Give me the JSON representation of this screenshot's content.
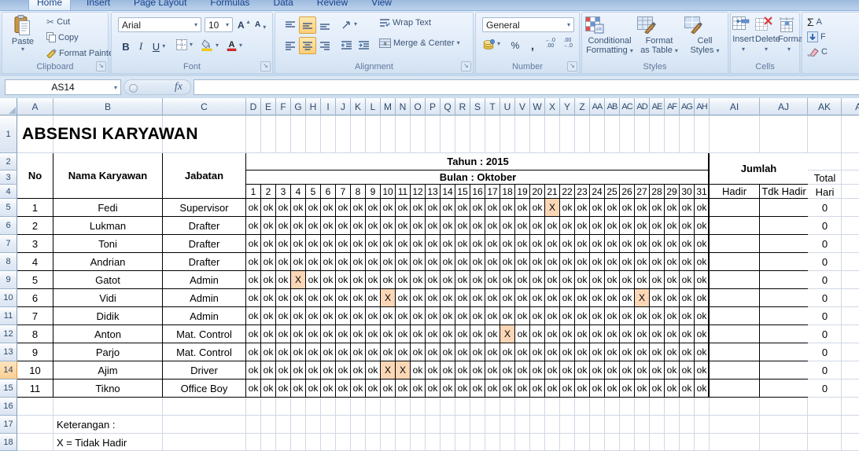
{
  "ribbon": {
    "tabs": [
      {
        "label": "Home",
        "active": true
      },
      {
        "label": "Insert",
        "active": false
      },
      {
        "label": "Page Layout",
        "active": false
      },
      {
        "label": "Formulas",
        "active": false
      },
      {
        "label": "Data",
        "active": false
      },
      {
        "label": "Review",
        "active": false
      },
      {
        "label": "View",
        "active": false
      }
    ],
    "clipboard": {
      "label": "Clipboard",
      "paste": "Paste",
      "cut": "Cut",
      "copy": "Copy",
      "format_painter": "Format Painter"
    },
    "font": {
      "label": "Font",
      "family": "Arial",
      "size": "10",
      "bold": "B",
      "italic": "I",
      "underline": "U"
    },
    "alignment": {
      "label": "Alignment",
      "wrap_text": "Wrap Text",
      "merge_center": "Merge & Center"
    },
    "number": {
      "label": "Number",
      "format": "General",
      "percent": "%",
      "comma": ","
    },
    "styles": {
      "label": "Styles",
      "conditional_1": "Conditional",
      "conditional_2": "Formatting",
      "format_table_1": "Format",
      "format_table_2": "as Table",
      "cell_styles_1": "Cell",
      "cell_styles_2": "Styles"
    },
    "cells": {
      "label": "Cells",
      "insert": "Insert",
      "delete": "Delete",
      "format": "Format"
    },
    "editing": {
      "autosum": "Σ",
      "autosum_partial": "A",
      "fill_partial": "F",
      "clear_partial": "C"
    }
  },
  "formula_bar": {
    "name_box": "AS14",
    "fx": "fx",
    "formula": ""
  },
  "grid": {
    "visible_columns": [
      "A",
      "B",
      "C",
      "D",
      "E",
      "F",
      "G",
      "H",
      "I",
      "J",
      "K",
      "L",
      "M",
      "N",
      "O",
      "P",
      "Q",
      "R",
      "S",
      "T",
      "U",
      "V",
      "W",
      "X",
      "Y",
      "Z",
      "AA",
      "AB",
      "AC",
      "AD",
      "AE",
      "AF",
      "AG",
      "AH",
      "AI",
      "AJ",
      "AK",
      "AL"
    ],
    "visible_rows": [
      "1",
      "2",
      "3",
      "4",
      "5",
      "6",
      "7",
      "8",
      "9",
      "10",
      "11",
      "12",
      "13",
      "14",
      "15",
      "16",
      "17",
      "18"
    ],
    "active_row": "14"
  },
  "sheet": {
    "title": "ABSENSI KARYAWAN",
    "header": {
      "no": "No",
      "nama": "Nama Karyawan",
      "jabatan": "Jabatan",
      "tahun": "Tahun : 2015",
      "bulan": "Bulan : Oktober",
      "jumlah": "Jumlah",
      "hadir": "Hadir",
      "tdk_hadir": "Tdk Hadir",
      "total_line1": "Total",
      "total_line2": "Hari"
    },
    "days": [
      1,
      2,
      3,
      4,
      5,
      6,
      7,
      8,
      9,
      10,
      11,
      12,
      13,
      14,
      15,
      16,
      17,
      18,
      19,
      20,
      21,
      22,
      23,
      24,
      25,
      26,
      27,
      28,
      29,
      30,
      31
    ],
    "marks": {
      "present": "ok",
      "absent": "X"
    },
    "employees": [
      {
        "no": "1",
        "name": "Fedi",
        "jabatan": "Supervisor",
        "absent_days": [
          21
        ],
        "hadir": "",
        "tdk_hadir": "",
        "total": "0"
      },
      {
        "no": "2",
        "name": "Lukman",
        "jabatan": "Drafter",
        "absent_days": [],
        "hadir": "",
        "tdk_hadir": "",
        "total": "0"
      },
      {
        "no": "3",
        "name": "Toni",
        "jabatan": "Drafter",
        "absent_days": [],
        "hadir": "",
        "tdk_hadir": "",
        "total": "0"
      },
      {
        "no": "4",
        "name": "Andrian",
        "jabatan": "Drafter",
        "absent_days": [],
        "hadir": "",
        "tdk_hadir": "",
        "total": "0"
      },
      {
        "no": "5",
        "name": "Gatot",
        "jabatan": "Admin",
        "absent_days": [
          4
        ],
        "hadir": "",
        "tdk_hadir": "",
        "total": "0"
      },
      {
        "no": "6",
        "name": "Vidi",
        "jabatan": "Admin",
        "absent_days": [
          10,
          27
        ],
        "hadir": "",
        "tdk_hadir": "",
        "total": "0"
      },
      {
        "no": "7",
        "name": "Didik",
        "jabatan": "Admin",
        "absent_days": [],
        "hadir": "",
        "tdk_hadir": "",
        "total": "0"
      },
      {
        "no": "8",
        "name": "Anton",
        "jabatan": "Mat. Control",
        "absent_days": [
          18
        ],
        "hadir": "",
        "tdk_hadir": "",
        "total": "0"
      },
      {
        "no": "9",
        "name": "Parjo",
        "jabatan": "Mat. Control",
        "absent_days": [],
        "hadir": "",
        "tdk_hadir": "",
        "total": "0"
      },
      {
        "no": "10",
        "name": "Ajim",
        "jabatan": "Driver",
        "absent_days": [
          10,
          11
        ],
        "hadir": "",
        "tdk_hadir": "",
        "total": "0"
      },
      {
        "no": "11",
        "name": "Tikno",
        "jabatan": "Office Boy",
        "absent_days": [],
        "hadir": "",
        "tdk_hadir": "",
        "total": "0"
      }
    ],
    "notes": {
      "keterangan": "Keterangan :",
      "legend": "X = Tidak Hadir"
    },
    "colors": {
      "absent_highlight": "#FCD7B6",
      "active_row_header": "#FBCF93",
      "table_border": "#000000",
      "gridline": "#d0d7e5"
    }
  }
}
